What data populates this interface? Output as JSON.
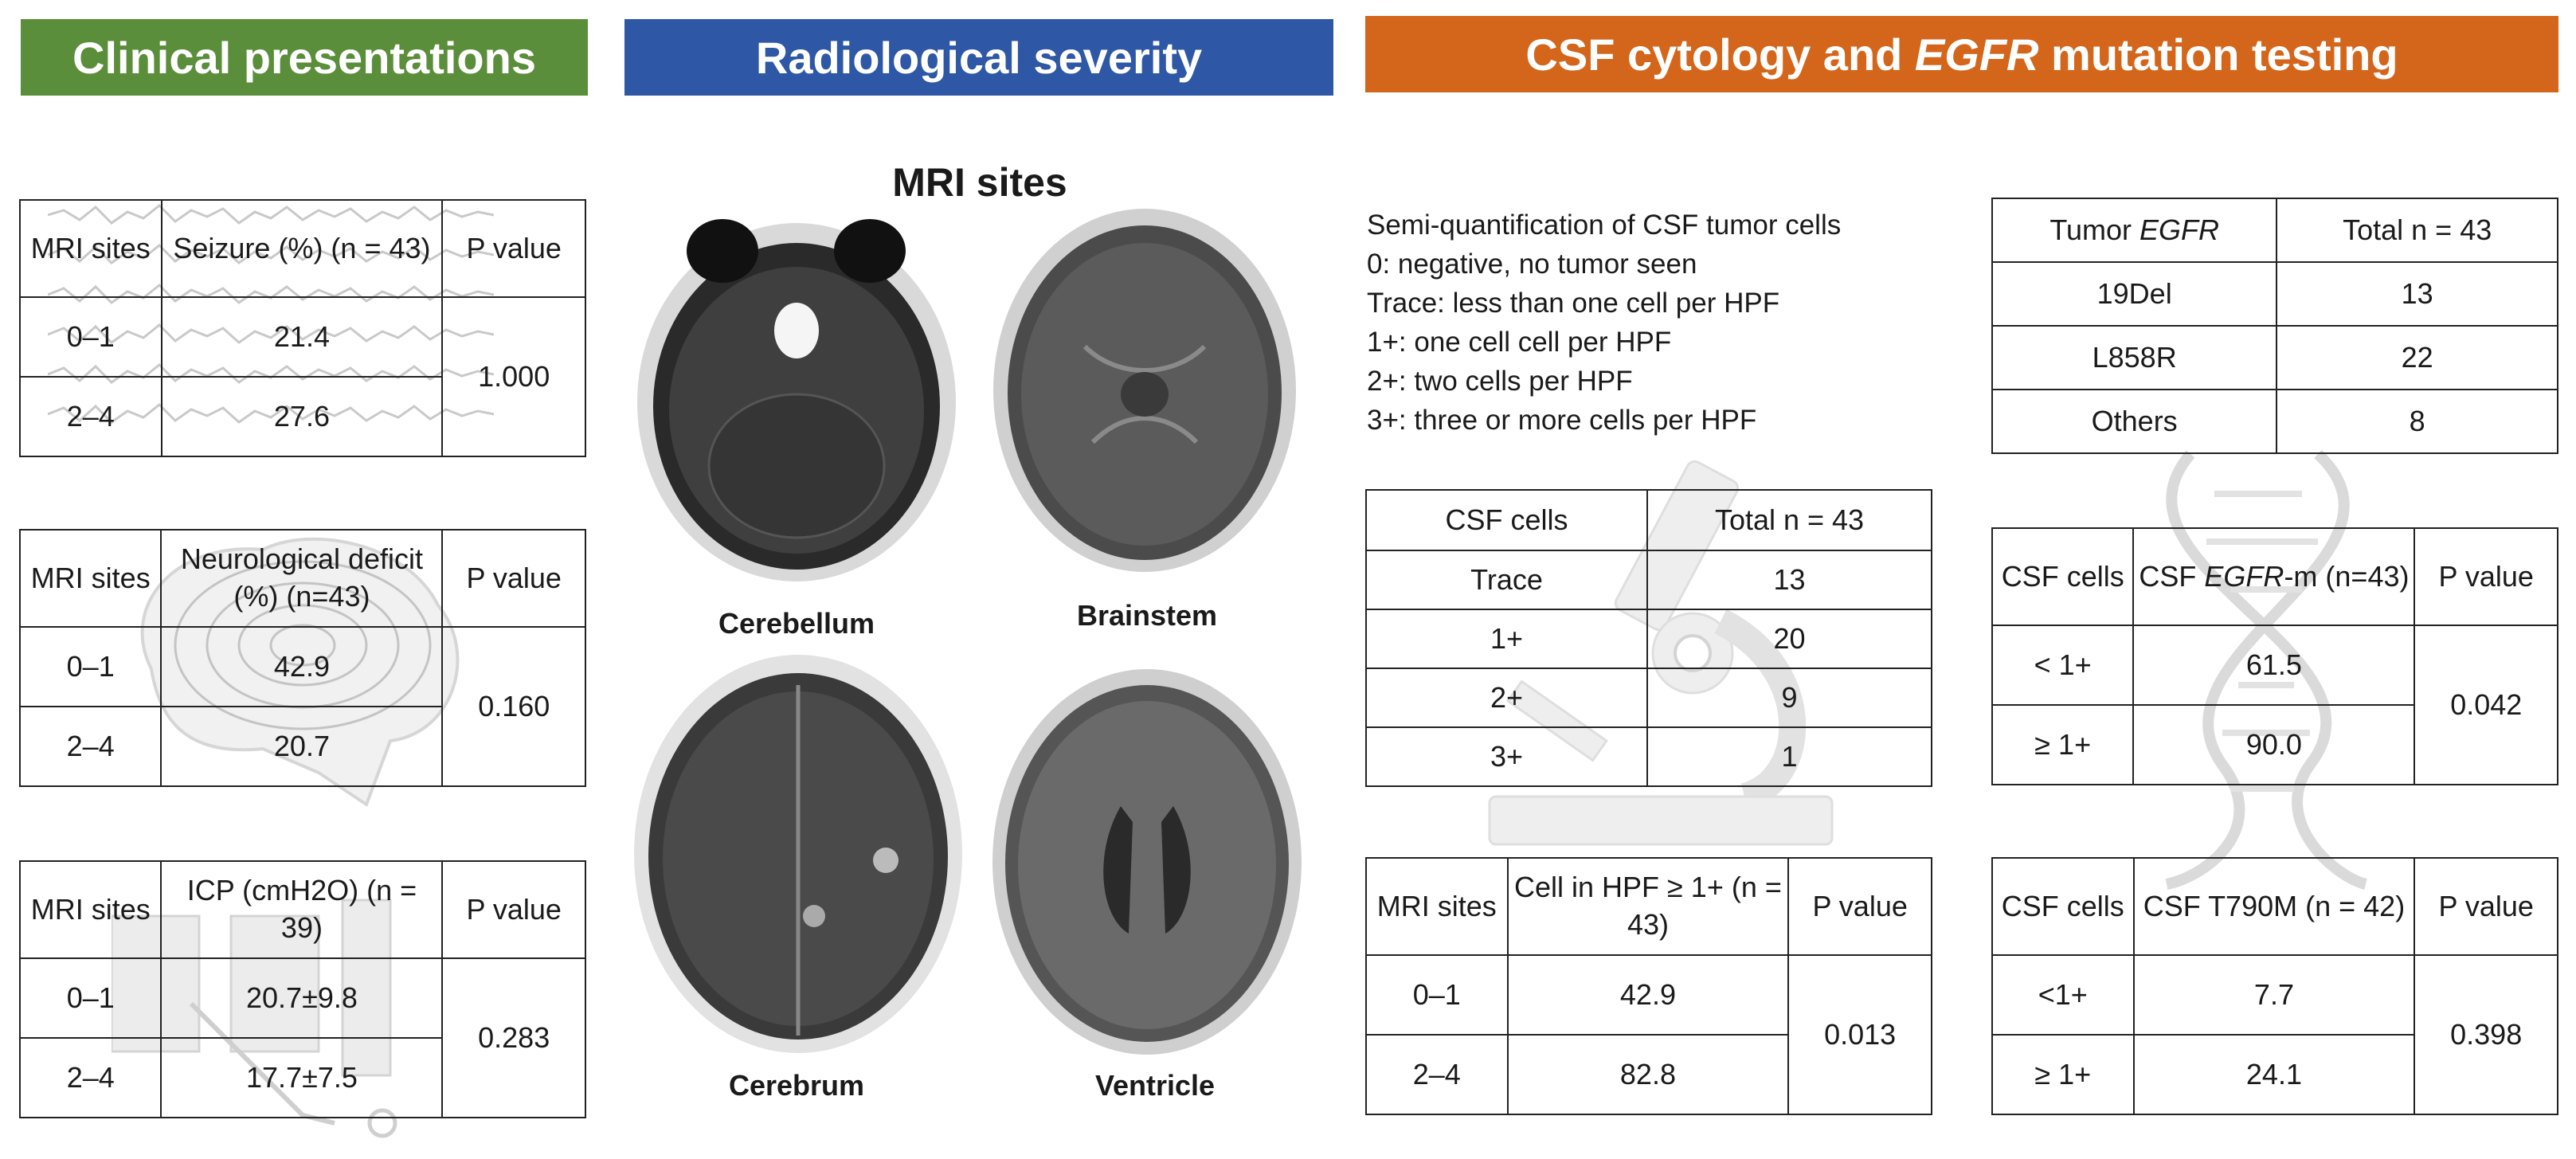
{
  "headers": {
    "clinical": "Clinical presentations",
    "radiological": "Radiological severity",
    "csf_pre": "CSF cytology and ",
    "csf_em": "EGFR",
    "csf_post": " mutation testing"
  },
  "mri": {
    "title": "MRI sites",
    "labels": {
      "cerebellum": "Cerebellum",
      "brainstem": "Brainstem",
      "cerebrum": "Cerebrum",
      "ventricle": "Ventricle"
    }
  },
  "seizure": {
    "h1": "MRI sites",
    "h2": "Seizure (%) (n = 43)",
    "h3": "P value",
    "r1": {
      "site": "0–1",
      "val": "21.4"
    },
    "r2": {
      "site": "2–4",
      "val": "27.6"
    },
    "p": "1.000"
  },
  "neuro": {
    "h1": "MRI sites",
    "h2": "Neurological deficit (%) (n=43)",
    "h3": "P value",
    "r1": {
      "site": "0–1",
      "val": "42.9"
    },
    "r2": {
      "site": "2–4",
      "val": "20.7"
    },
    "p": "0.160"
  },
  "icp": {
    "h1": "MRI sites",
    "h2": "ICP (cmH2O) (n = 39)",
    "h3": "P value",
    "r1": {
      "site": "0–1",
      "val": "20.7±9.8"
    },
    "r2": {
      "site": "2–4",
      "val": "17.7±7.5"
    },
    "p": "0.283"
  },
  "legend": [
    "Semi-quantification of CSF tumor cells",
    "0: negative, no tumor seen",
    "Trace: less than one cell per HPF",
    "1+: one cell cell per HPF",
    "2+: two cells per HPF",
    "3+: three or more cells per HPF"
  ],
  "csf_cells": {
    "h1": "CSF cells",
    "h2": "Total n = 43",
    "rows": [
      {
        "label": "Trace",
        "val": "13"
      },
      {
        "label": "1+",
        "val": "20"
      },
      {
        "label": "2+",
        "val": "9"
      },
      {
        "label": "3+",
        "val": "1"
      }
    ]
  },
  "cell_hpf": {
    "h1": "MRI sites",
    "h2": "Cell in HPF ≥ 1+ (n = 43)",
    "h3": "P value",
    "r1": {
      "site": "0–1",
      "val": "42.9"
    },
    "r2": {
      "site": "2–4",
      "val": "82.8"
    },
    "p": "0.013"
  },
  "tumor_egfr": {
    "h1_pre": "Tumor ",
    "h1_em": "EGFR",
    "h2": "Total n = 43",
    "rows": [
      {
        "label": "19Del",
        "val": "13"
      },
      {
        "label": "L858R",
        "val": "22"
      },
      {
        "label": "Others",
        "val": "8"
      }
    ]
  },
  "csf_egfr": {
    "h1": "CSF cells",
    "h2_pre": "CSF ",
    "h2_em": "EGFR",
    "h2_post": "-m (n=43)",
    "h3": "P value",
    "r1": {
      "site": "< 1+",
      "val": "61.5"
    },
    "r2": {
      "site": "≥ 1+",
      "val": "90.0"
    },
    "p": "0.042"
  },
  "t790m": {
    "h1": "CSF cells",
    "h2": "CSF T790M (n = 42)",
    "h3": "P value",
    "r1": {
      "site": "<1+",
      "val": "7.7"
    },
    "r2": {
      "site": "≥ 1+",
      "val": "24.1"
    },
    "p": "0.398"
  },
  "icons": [
    "eeg-waves-icon",
    "brain-icon",
    "syringe-icon",
    "microscope-icon",
    "dna-icon"
  ]
}
